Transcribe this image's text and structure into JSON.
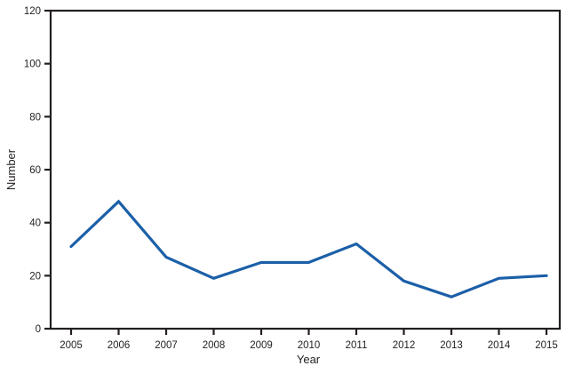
{
  "figure": {
    "background": "#ffffff"
  },
  "chart_data": {
    "type": "line",
    "title": "",
    "xlabel": "Year",
    "ylabel": "Number",
    "categories": [
      "2005",
      "2006",
      "2007",
      "2008",
      "2009",
      "2010",
      "2011",
      "2012",
      "2013",
      "2014",
      "2015"
    ],
    "x": [
      2005,
      2006,
      2007,
      2008,
      2009,
      2010,
      2011,
      2012,
      2013,
      2014,
      2015
    ],
    "values": [
      31,
      48,
      27,
      19,
      25,
      25,
      32,
      18,
      12,
      19,
      20
    ],
    "ylim": [
      0,
      120
    ],
    "ytick_step": 20,
    "grid": false,
    "legend": "none",
    "line_color": "#1b5fa8",
    "axis_color": "#231f20"
  }
}
